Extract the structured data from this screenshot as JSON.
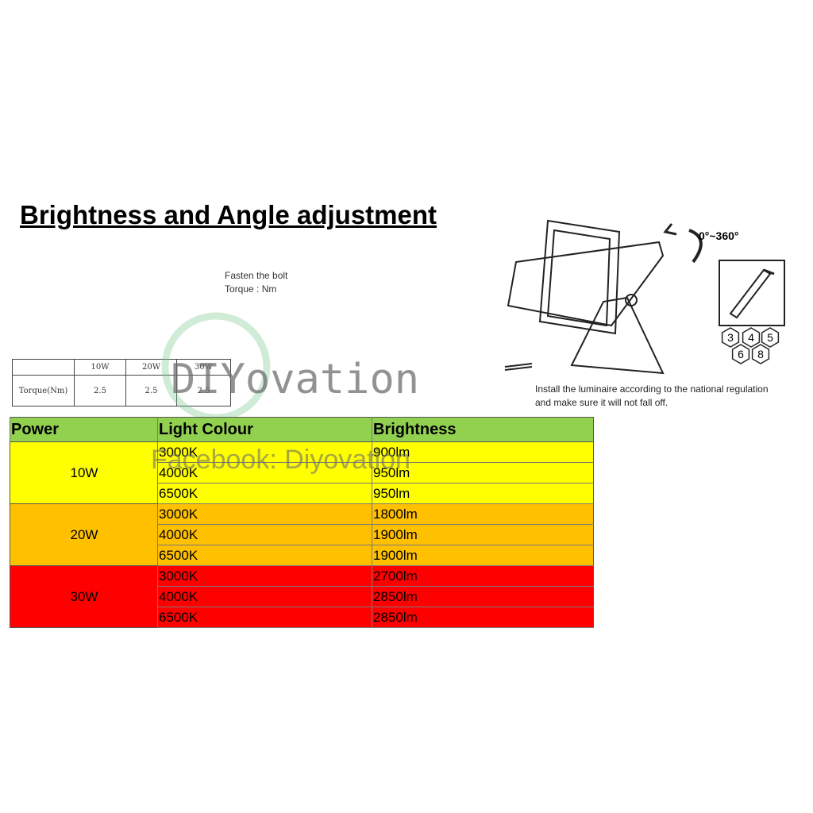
{
  "title": "Brightness and Angle adjustment",
  "fasten": {
    "line1": "Fasten the bolt",
    "line2": "Torque : Nm"
  },
  "torque_table": {
    "headers": [
      "10W",
      "20W",
      "30W"
    ],
    "row_label": "Torque(Nm)",
    "values": [
      "2.5",
      "2.5",
      "2.5"
    ]
  },
  "diagram": {
    "angle": "0°~360°",
    "keys": [
      "3",
      "4",
      "5",
      "6",
      "8"
    ],
    "install_line1": "Install the luminaire according to the national regulation",
    "install_line2": "and make sure it will not fall off."
  },
  "watermark": {
    "brand": "DIYovation",
    "facebook": "Facebook: Diyovation"
  },
  "main_table": {
    "headers": [
      "Power",
      "Light Colour",
      "Brightness"
    ],
    "groups": [
      {
        "power": "10W",
        "rows": [
          [
            "3000K",
            "900lm"
          ],
          [
            "4000K",
            "950lm"
          ],
          [
            "6500K",
            "950lm"
          ]
        ]
      },
      {
        "power": "20W",
        "rows": [
          [
            "3000K",
            "1800lm"
          ],
          [
            "4000K",
            "1900lm"
          ],
          [
            "6500K",
            "1900lm"
          ]
        ]
      },
      {
        "power": "30W",
        "rows": [
          [
            "3000K",
            "2700lm"
          ],
          [
            "4000K",
            "2850lm"
          ],
          [
            "6500K",
            "2850lm"
          ]
        ]
      }
    ]
  }
}
